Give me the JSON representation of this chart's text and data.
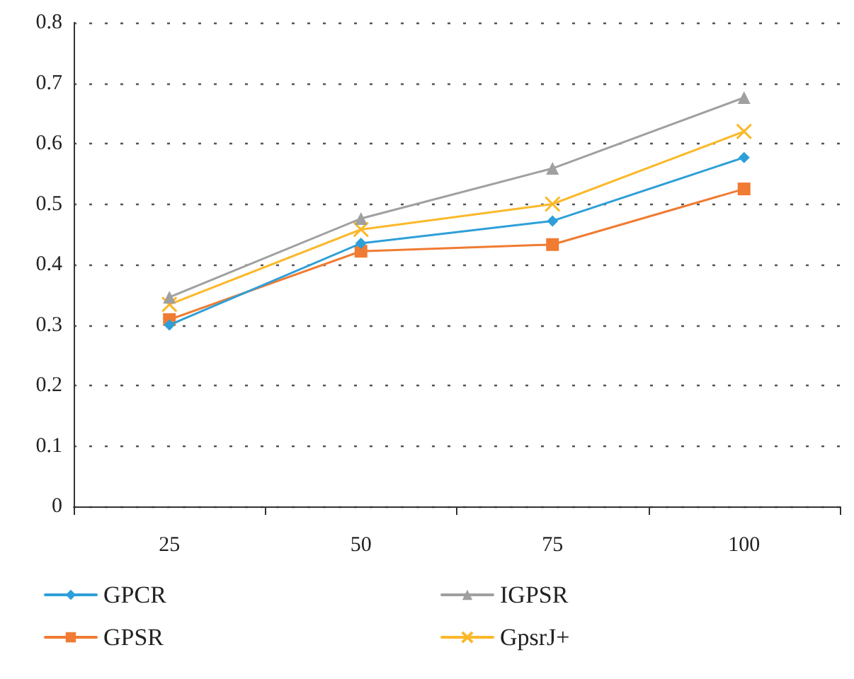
{
  "chart_data": {
    "type": "line",
    "categories": [
      "25",
      "50",
      "75",
      "100"
    ],
    "series": [
      {
        "name": "GPCR",
        "color": "#2e9fd8",
        "marker": "diamond",
        "values": [
          0.3,
          0.435,
          0.472,
          0.577
        ]
      },
      {
        "name": "GPSR",
        "color": "#f07b32",
        "marker": "square",
        "values": [
          0.309,
          0.422,
          0.433,
          0.525
        ]
      },
      {
        "name": "IGPSR",
        "color": "#a0a0a0",
        "marker": "triangle",
        "values": [
          0.346,
          0.476,
          0.559,
          0.676
        ]
      },
      {
        "name": "GpsrJ+",
        "color": "#fbb82a",
        "marker": "cross",
        "values": [
          0.334,
          0.458,
          0.5,
          0.62
        ]
      }
    ],
    "ylim": [
      0,
      0.8
    ],
    "yticks": [
      0,
      0.1,
      0.2,
      0.3,
      0.4,
      0.5,
      0.6,
      0.7,
      0.8
    ],
    "grid": "y",
    "legend": "bottom"
  }
}
